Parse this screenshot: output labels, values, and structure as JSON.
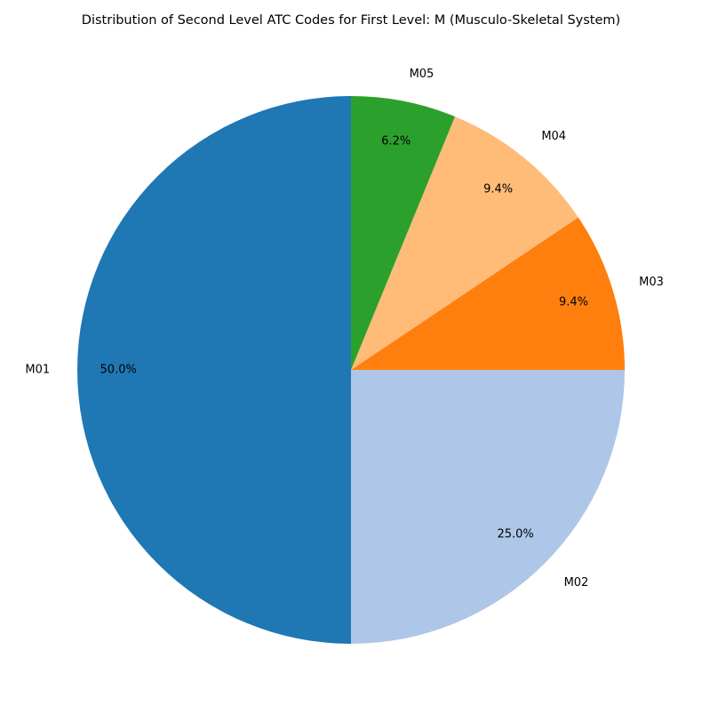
{
  "chart_data": {
    "type": "pie",
    "title": "Distribution of Second Level ATC Codes for First Level: M (Musculo-Skeletal System)",
    "start_angle_deg": 90,
    "direction": "counterclockwise",
    "legend": "none",
    "slices": [
      {
        "label": "M01",
        "value": 50.0,
        "pct_label": "50.0%",
        "color": "#1f77b4"
      },
      {
        "label": "M02",
        "value": 25.0,
        "pct_label": "25.0%",
        "color": "#aec7e8"
      },
      {
        "label": "M03",
        "value": 9.4,
        "pct_label": "9.4%",
        "color": "#ff7f0e"
      },
      {
        "label": "M04",
        "value": 9.4,
        "pct_label": "9.4%",
        "color": "#ffbb78"
      },
      {
        "label": "M05",
        "value": 6.2,
        "pct_label": "6.2%",
        "color": "#2ca02c"
      }
    ]
  }
}
